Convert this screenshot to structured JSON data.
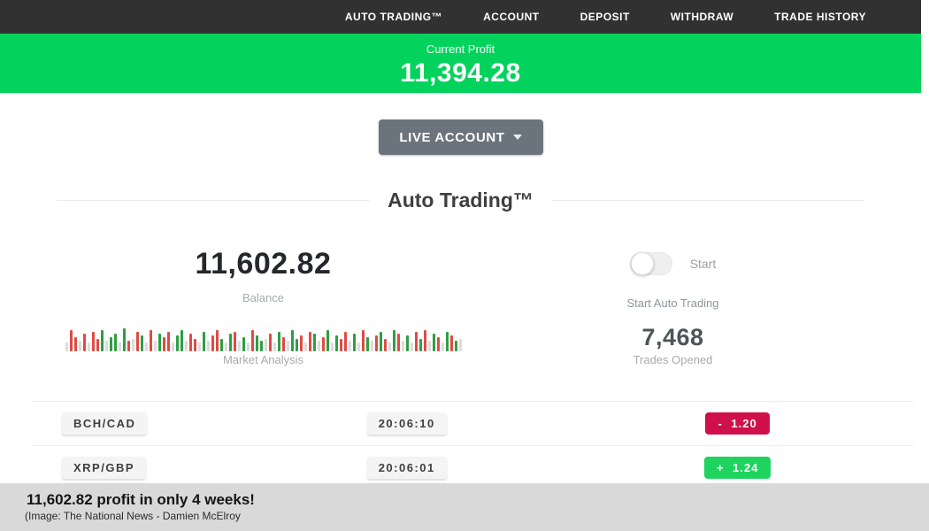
{
  "nav": {
    "items": [
      {
        "id": "auto-trading",
        "label": "AUTO TRADING™"
      },
      {
        "id": "account",
        "label": "ACCOUNT"
      },
      {
        "id": "deposit",
        "label": "DEPOSIT"
      },
      {
        "id": "withdraw",
        "label": "WITHDRAW"
      },
      {
        "id": "trade-history",
        "label": "TRADE HISTORY"
      }
    ]
  },
  "profit_banner": {
    "label": "Current Profit",
    "value": "11,394.28"
  },
  "account_selector": {
    "label": "LIVE ACCOUNT"
  },
  "section_title": "Auto Trading™",
  "stats": {
    "balance": {
      "value": "11,602.82",
      "label": "Balance"
    },
    "auto_trading": {
      "toggle_state": "off",
      "toggle_text": "Start",
      "label": "Start Auto Trading"
    },
    "market_analysis": {
      "label": "Market Analysis",
      "bars": [
        "n10",
        "r24",
        "r16",
        "n12",
        "r20",
        "n10",
        "r22",
        "r14",
        "g24",
        "n12",
        "g16",
        "g20",
        "n10",
        "g26",
        "r12",
        "n14",
        "r22",
        "g18",
        "n10",
        "r24",
        "n12",
        "g20",
        "r16",
        "r22",
        "n10",
        "g18",
        "g24",
        "n12",
        "r20",
        "r14",
        "n10",
        "g22",
        "n12",
        "r18",
        "r24",
        "g14",
        "n10",
        "g20",
        "r22",
        "n12",
        "g16",
        "n10",
        "r24",
        "g18",
        "g12",
        "n14",
        "r20",
        "n10",
        "g22",
        "r16",
        "n12",
        "g24",
        "g14",
        "r18",
        "n10",
        "r22",
        "g20",
        "n12",
        "r16",
        "g24",
        "n10",
        "g18",
        "r14",
        "r22",
        "n12",
        "g20",
        "n10",
        "r24",
        "g16",
        "n12",
        "r18",
        "g22",
        "r14",
        "n10",
        "g24",
        "r20",
        "n12",
        "g18",
        "n10",
        "r22",
        "g14",
        "r24",
        "n12",
        "g20",
        "r16",
        "n10",
        "g22",
        "r18",
        "g12",
        "n14"
      ]
    },
    "trades": {
      "value": "7,468",
      "label": "Trades Opened"
    }
  },
  "trades_table": {
    "rows": [
      {
        "pair": "BCH/CAD",
        "time": "20:06:10",
        "change": "- 1.20",
        "direction": "loss"
      },
      {
        "pair": "XRP/GBP",
        "time": "20:06:01",
        "change": "+ 1.24",
        "direction": "gain"
      }
    ]
  },
  "caption": {
    "title": "11,602.82 profit in only 4 weeks!",
    "credit": "(Image:  The National News - Damien McElroy"
  },
  "colors": {
    "nav_bg": "#313131",
    "banner_green": "#03d35c",
    "button_gray": "#6b747c",
    "badge_red": "#d0104a",
    "badge_green": "#1fd35f",
    "bar_red": "#df4b43",
    "bar_green": "#2f9e44",
    "bar_gray": "#dcdcdc",
    "caption_bg": "#d9d9d9"
  }
}
